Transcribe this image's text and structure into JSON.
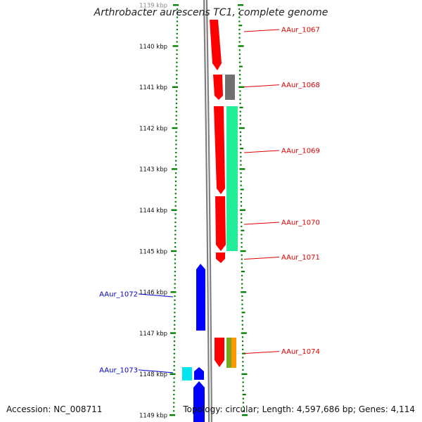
{
  "title": "Arthrobacter aurescens TC1, complete genome",
  "accession_text": "Accession: NC_008711",
  "summary_text": "Topology: circular; Length: 4,597,686 bp; Genes: 4,114",
  "colors": {
    "forward_strand": "#ff0000",
    "reverse_strand": "#0000ff",
    "backbone": "#808080",
    "ticks": "#008000",
    "gray_feature": "#707070",
    "green_feature": "#22ee99",
    "cyan_feature": "#00e5ee",
    "orange_feature": "#ff9900",
    "olive_feature": "#77aa22",
    "forward_label": "#dd0000",
    "reverse_label": "#0000cc"
  },
  "axis_ticks": [
    {
      "kbp": 1139,
      "label": "1139 kbp"
    },
    {
      "kbp": 1140,
      "label": "1140 kbp"
    },
    {
      "kbp": 1141,
      "label": "1141 kbp"
    },
    {
      "kbp": 1142,
      "label": "1142 kbp"
    },
    {
      "kbp": 1143,
      "label": "1143 kbp"
    },
    {
      "kbp": 1144,
      "label": "1144 kbp"
    },
    {
      "kbp": 1145,
      "label": "1145 kbp"
    },
    {
      "kbp": 1146,
      "label": "1146 kbp"
    },
    {
      "kbp": 1147,
      "label": "1147 kbp"
    },
    {
      "kbp": 1148,
      "label": "1148 kbp"
    },
    {
      "kbp": 1149,
      "label": "1149 kbp"
    }
  ],
  "gene_labels": [
    {
      "name": "AAur_1067",
      "strand": "forward",
      "kbp": 1139.6
    },
    {
      "name": "AAur_1068",
      "strand": "forward",
      "kbp": 1140.95
    },
    {
      "name": "AAur_1069",
      "strand": "forward",
      "kbp": 1142.55
    },
    {
      "name": "AAur_1070",
      "strand": "forward",
      "kbp": 1144.3
    },
    {
      "name": "AAur_1071",
      "strand": "forward",
      "kbp": 1145.15
    },
    {
      "name": "AAur_1072",
      "strand": "reverse",
      "kbp": 1146.05
    },
    {
      "name": "AAur_1073",
      "strand": "reverse",
      "kbp": 1147.9
    },
    {
      "name": "AAur_1074",
      "strand": "forward",
      "kbp": 1147.45
    }
  ]
}
